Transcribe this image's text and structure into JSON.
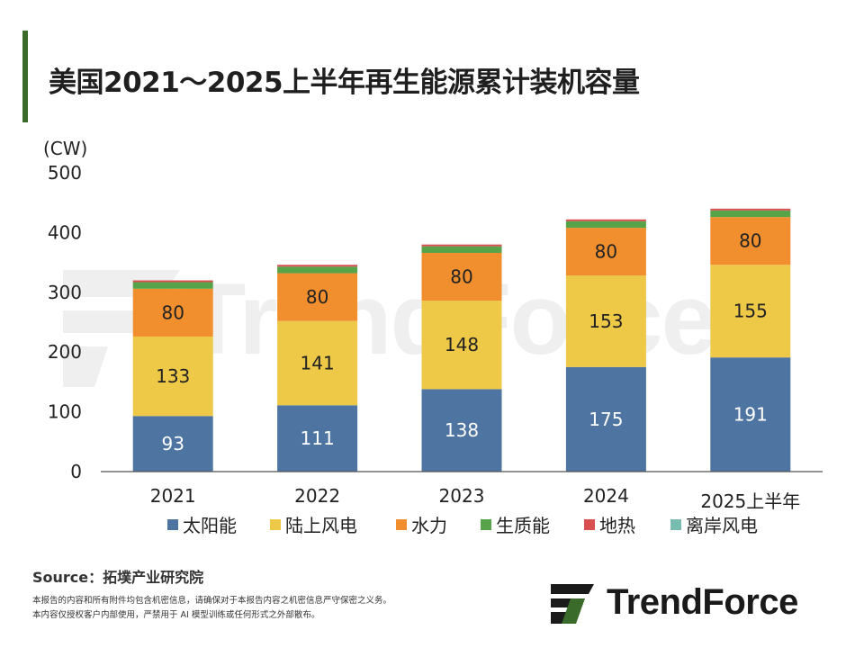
{
  "title": "美国2021～2025上半年再生能源累计装机容量",
  "source": "Source：拓墣产业研究院",
  "notes": [
    "本报告的内容和所有附件均包含机密信息，请确保对于本报告内容之机密信息严守保密之义务。",
    "本内容仅授权客户内部使用，严禁用于 AI 模型训练或任何形式之外部散布。"
  ],
  "logo_text": "TrendForce",
  "colors": {
    "solar": "#4e74a2",
    "onshore_wind": "#eec847",
    "hydro": "#f18f2f",
    "biomass": "#57a34a",
    "geothermal": "#d94f4f",
    "offshore_wind": "#78bcb0",
    "title_bar": "#3a6b2a"
  },
  "chart_data": {
    "type": "bar",
    "stacked": true,
    "ylabel": "(CW)",
    "ylim": [
      0,
      500
    ],
    "yticks": [
      0,
      100,
      200,
      300,
      400,
      500
    ],
    "categories": [
      "2021",
      "2022",
      "2023",
      "2024",
      "2025上半年"
    ],
    "legend_position": "bottom",
    "series": [
      {
        "name": "太阳能",
        "color_key": "solar",
        "values": [
          93,
          111,
          138,
          175,
          191
        ],
        "labeled": true
      },
      {
        "name": "陆上风电",
        "color_key": "onshore_wind",
        "values": [
          133,
          141,
          148,
          153,
          155
        ],
        "labeled": true
      },
      {
        "name": "水力",
        "color_key": "hydro",
        "values": [
          80,
          80,
          80,
          80,
          80
        ],
        "labeled": true
      },
      {
        "name": "生质能",
        "color_key": "biomass",
        "values": [
          11,
          11,
          11,
          11,
          11
        ],
        "labeled": false
      },
      {
        "name": "地热",
        "color_key": "geothermal",
        "values": [
          3,
          3,
          3,
          3,
          3
        ],
        "labeled": false
      },
      {
        "name": "离岸风电",
        "color_key": "offshore_wind",
        "values": [
          0,
          0,
          0,
          0,
          0
        ],
        "labeled": false
      }
    ]
  }
}
